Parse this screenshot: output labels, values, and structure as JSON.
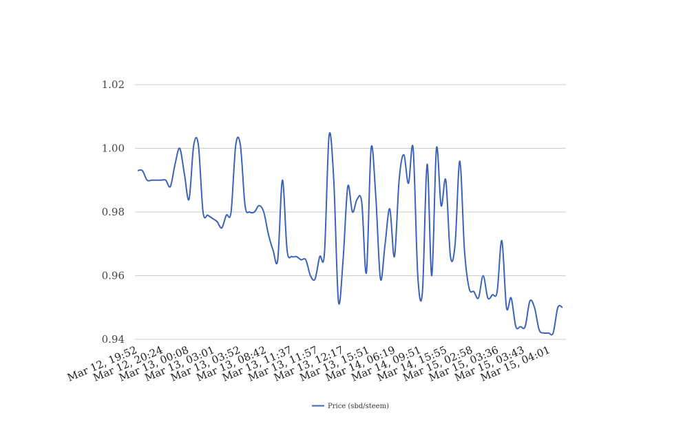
{
  "chart_data": {
    "type": "line",
    "title": "",
    "xlabel": "",
    "ylabel": "",
    "ylim": [
      0.94,
      1.02
    ],
    "yticks": [
      "0.94",
      "0.96",
      "0.98",
      "1.00",
      "1.02"
    ],
    "xtick_labels": [
      "Mar 12, 19:52",
      "Mar 12, 20:24",
      "Mar 13, 00:08",
      "Mar 13, 03:01",
      "Mar 13, 03:52",
      "Mar 13, 08:42",
      "Mar 13, 11:37",
      "Mar 13, 11:57",
      "Mar 13, 12:17",
      "Mar 13, 15:51",
      "Mar 14, 06:19",
      "Mar 14, 09:51",
      "Mar 14, 15:55",
      "Mar 15, 02:58",
      "Mar 15, 03:36",
      "Mar 15, 03:43",
      "Mar 15, 04:01"
    ],
    "grid": true,
    "legend_position": "bottom-center",
    "series": [
      {
        "name": "Price (sbd/steem)",
        "color": "#3a63b8",
        "values": [
          0.993,
          0.993,
          0.99,
          0.99,
          0.99,
          0.99,
          0.99,
          0.988,
          0.995,
          1.0,
          0.992,
          0.984,
          1.001,
          1.001,
          0.98,
          0.979,
          0.978,
          0.977,
          0.975,
          0.979,
          0.98,
          1.001,
          1.001,
          0.982,
          0.98,
          0.98,
          0.982,
          0.98,
          0.973,
          0.968,
          0.965,
          0.99,
          0.968,
          0.966,
          0.966,
          0.965,
          0.965,
          0.96,
          0.959,
          0.966,
          0.967,
          1.004,
          0.99,
          0.952,
          0.965,
          0.988,
          0.98,
          0.984,
          0.983,
          0.961,
          1.0,
          0.985,
          0.959,
          0.97,
          0.981,
          0.966,
          0.99,
          0.998,
          0.989,
          1.0,
          0.96,
          0.955,
          0.995,
          0.96,
          1.0,
          0.982,
          0.99,
          0.966,
          0.97,
          0.996,
          0.968,
          0.956,
          0.955,
          0.953,
          0.96,
          0.953,
          0.954,
          0.955,
          0.971,
          0.95,
          0.953,
          0.944,
          0.944,
          0.944,
          0.952,
          0.95,
          0.943,
          0.942,
          0.942,
          0.942,
          0.95,
          0.95
        ]
      }
    ]
  }
}
